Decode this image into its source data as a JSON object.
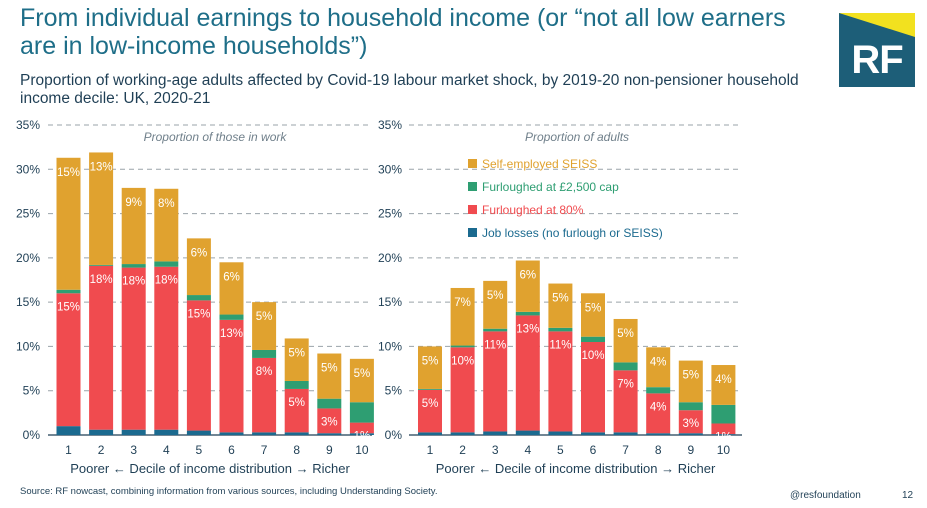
{
  "header": {
    "title": "From individual earnings to household income (or “not all low earners are in low-income households”)",
    "subtitle": "Proportion of working-age adults affected by Covid-19 labour market shock, by 2019-20 non-pensioner household income decile: UK, 2020-21",
    "logo_text": "RF"
  },
  "footer": {
    "source": "Source: RF nowcast, combining information from various sources,  including Understanding Society.",
    "handle": "@resfoundation",
    "page": "12"
  },
  "colors": {
    "job_losses": "#1b6a8f",
    "furlough80": "#f04b4f",
    "furlough_cap": "#2e9e72",
    "seiss": "#e0a22f",
    "grid": "#9aa3a9"
  },
  "chart_data": [
    {
      "type": "bar",
      "stacked": true,
      "panel_label": "Proportion of those in work",
      "xlabel": "Poorer ← Decile of income distribution → Richer",
      "categories": [
        "1",
        "2",
        "3",
        "4",
        "5",
        "6",
        "7",
        "8",
        "9",
        "10"
      ],
      "ylim": [
        0,
        35
      ],
      "yticks": [
        "0%",
        "5%",
        "10%",
        "15%",
        "20%",
        "25%",
        "30%",
        "35%"
      ],
      "grid": true,
      "series": [
        {
          "name": "Job losses (no furlough or SEISS)",
          "color_key": "job_losses",
          "values": [
            1.0,
            0.6,
            0.6,
            0.6,
            0.5,
            0.3,
            0.3,
            0.3,
            0.2,
            0.2
          ]
        },
        {
          "name": "Furloughed at 80%",
          "color_key": "furlough80",
          "values": [
            15.0,
            18.5,
            18.3,
            18.4,
            14.7,
            12.7,
            8.4,
            4.9,
            2.8,
            1.2
          ]
        },
        {
          "name": "Furloughed at £2,500 cap",
          "color_key": "furlough_cap",
          "values": [
            0.4,
            0.1,
            0.4,
            0.6,
            0.6,
            0.6,
            0.9,
            0.9,
            1.1,
            2.3
          ]
        },
        {
          "name": "Self-employed SEISS",
          "color_key": "seiss",
          "values": [
            14.9,
            12.7,
            8.6,
            8.2,
            6.4,
            5.9,
            5.4,
            4.8,
            5.1,
            4.9
          ]
        }
      ],
      "labels": [
        {
          "series": 1,
          "texts": [
            "15%",
            "18%",
            "18%",
            "18%",
            "15%",
            "13%",
            "8%",
            "5%",
            "3%",
            "1%"
          ]
        },
        {
          "series": 3,
          "texts": [
            "15%",
            "13%",
            "9%",
            "8%",
            "6%",
            "6%",
            "5%",
            "5%",
            "5%",
            "5%"
          ]
        }
      ]
    },
    {
      "type": "bar",
      "stacked": true,
      "panel_label": "Proportion of adults",
      "xlabel": "Poorer ← Decile of income distribution → Richer",
      "categories": [
        "1",
        "2",
        "3",
        "4",
        "5",
        "6",
        "7",
        "8",
        "9",
        "10"
      ],
      "ylim": [
        0,
        35
      ],
      "yticks": [
        "0%",
        "5%",
        "10%",
        "15%",
        "20%",
        "25%",
        "30%",
        "35%"
      ],
      "grid": true,
      "legend": {
        "placement": "top-right",
        "entries": [
          {
            "label": "Self-employed SEISS",
            "color_key": "seiss"
          },
          {
            "label": "Furloughed at £2,500 cap",
            "color_key": "furlough_cap"
          },
          {
            "label": "Furloughed at 80%",
            "color_key": "furlough80"
          },
          {
            "label": "Job losses (no furlough or SEISS)",
            "color_key": "job_losses"
          }
        ]
      },
      "series": [
        {
          "name": "Job losses (no furlough or SEISS)",
          "color_key": "job_losses",
          "values": [
            0.3,
            0.3,
            0.4,
            0.5,
            0.4,
            0.3,
            0.3,
            0.2,
            0.2,
            0.1
          ]
        },
        {
          "name": "Furloughed at 80%",
          "color_key": "furlough80",
          "values": [
            4.8,
            9.6,
            11.3,
            13.0,
            11.3,
            10.2,
            7.0,
            4.5,
            2.6,
            1.2
          ]
        },
        {
          "name": "Furloughed at £2,500 cap",
          "color_key": "furlough_cap",
          "values": [
            0.1,
            0.2,
            0.3,
            0.4,
            0.4,
            0.6,
            0.9,
            0.7,
            0.9,
            2.1
          ]
        },
        {
          "name": "Self-employed SEISS",
          "color_key": "seiss",
          "values": [
            4.8,
            6.5,
            5.4,
            5.8,
            5.0,
            4.9,
            4.9,
            4.5,
            4.7,
            4.5
          ]
        }
      ],
      "labels": [
        {
          "series": 1,
          "texts": [
            "5%",
            "10%",
            "11%",
            "13%",
            "11%",
            "10%",
            "7%",
            "4%",
            "3%",
            "1%"
          ]
        },
        {
          "series": 3,
          "texts": [
            "5%",
            "7%",
            "5%",
            "6%",
            "5%",
            "5%",
            "5%",
            "4%",
            "5%",
            "4%"
          ]
        }
      ]
    }
  ]
}
